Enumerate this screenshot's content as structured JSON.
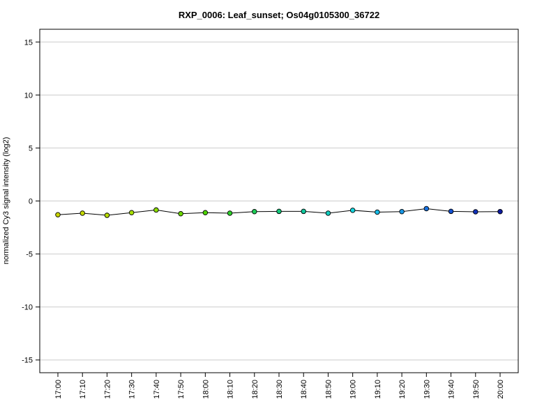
{
  "chart_data": {
    "type": "line",
    "title": "RXP_0006: Leaf_sunset; Os04g0105300_36722",
    "xlabel": "",
    "ylabel": "normalized Cy3 signal intensity (log2)",
    "ylim": [
      -16.2,
      16.2
    ],
    "yticks": [
      15,
      10,
      5,
      0,
      -5,
      -10,
      -15
    ],
    "ytick_labels": [
      "15",
      "10",
      "5",
      "0",
      "-5",
      "-10",
      "-15"
    ],
    "grid": "horizontal",
    "categories": [
      "17:00",
      "17:10",
      "17:20",
      "17:30",
      "17:40",
      "17:50",
      "18:00",
      "18:10",
      "18:20",
      "18:30",
      "18:40",
      "18:50",
      "19:00",
      "19:10",
      "19:20",
      "19:30",
      "19:40",
      "19:50",
      "20:00"
    ],
    "series": [
      {
        "values": [
          -1.3,
          -1.15,
          -1.35,
          -1.1,
          -0.85,
          -1.2,
          -1.1,
          -1.15,
          -1.0,
          -0.98,
          -0.98,
          -1.15,
          -0.88,
          -1.05,
          -1.0,
          -0.72,
          -0.98,
          -1.02,
          -1.0
        ],
        "point_colors": [
          "#c8d400",
          "#c4d800",
          "#b8dc00",
          "#a6de00",
          "#8cdc00",
          "#6cd800",
          "#4cd400",
          "#2ed02a",
          "#1ccc55",
          "#14c87a",
          "#10c89e",
          "#10ccbe",
          "#14d4dc",
          "#18bce8",
          "#1896e4",
          "#1872e0",
          "#1450d0",
          "#1030b8",
          "#0c1aa0"
        ]
      }
    ]
  }
}
